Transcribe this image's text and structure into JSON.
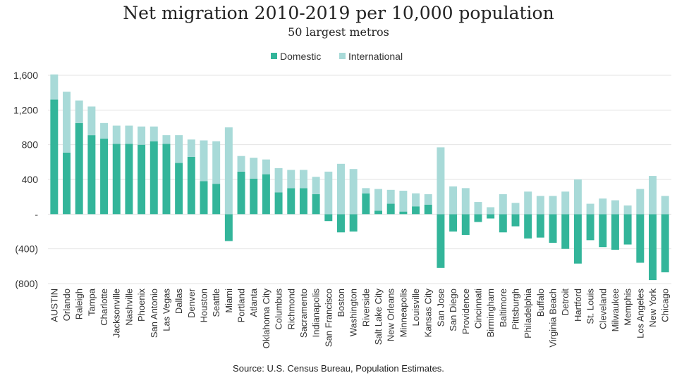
{
  "chart_data": {
    "type": "bar",
    "stacked": true,
    "title": "Net migration 2010-2019 per 10,000 population",
    "subtitle": "50 largest metros",
    "source": "Source:  U.S. Census Bureau, Population Estimates.",
    "ylim": [
      -800,
      1600
    ],
    "yticks": [
      {
        "value": 1600,
        "label": "1,600"
      },
      {
        "value": 1200,
        "label": "1,200"
      },
      {
        "value": 800,
        "label": "800"
      },
      {
        "value": 400,
        "label": "400"
      },
      {
        "value": 0,
        "label": "-"
      },
      {
        "value": -400,
        "label": "(400)"
      },
      {
        "value": -800,
        "label": "(800)"
      }
    ],
    "grid": true,
    "legend_position": "top",
    "categories": [
      "AUSTIN",
      "Orlando",
      "Raleigh",
      "Tampa",
      "Charlotte",
      "Jacksonville",
      "Nashville",
      "Phoenix",
      "San Antonio",
      "Las Vegas",
      "Dallas",
      "Denver",
      "Houston",
      "Seattle",
      "Miami",
      "Portland",
      "Atlanta",
      "Oklahoma City",
      "Columbus",
      "Richmond",
      "Sacramento",
      "Indianapolis",
      "San Francisco",
      "Boston",
      "Washington",
      "Riverside",
      "Salt Lake City",
      "New Orleans",
      "Minneapolis",
      "Louisville",
      "Kansas City",
      "San Jose",
      "San Diego",
      "Providence",
      "Cincinnati",
      "Birmingham",
      "Baltimore",
      "Pittsburgh",
      "Philadelphia",
      "Buffalo",
      "Virginia Beach",
      "Detroit",
      "Hartford",
      "St. Louis",
      "Cleveland",
      "Milwaukee",
      "Memphis",
      "Los Angeles",
      "New York",
      "Chicago"
    ],
    "series": [
      {
        "name": "Domestic",
        "color": "#33b59a",
        "values": [
          1320,
          710,
          1050,
          910,
          870,
          810,
          810,
          800,
          840,
          810,
          590,
          660,
          380,
          350,
          -310,
          490,
          410,
          460,
          250,
          300,
          300,
          230,
          -80,
          -210,
          -200,
          240,
          40,
          120,
          30,
          90,
          110,
          -620,
          -200,
          -240,
          -90,
          -50,
          -210,
          -140,
          -280,
          -270,
          -330,
          -400,
          -570,
          -300,
          -380,
          -410,
          -350,
          -560,
          -760,
          -670
        ]
      },
      {
        "name": "International",
        "color": "#a8dad8",
        "values": [
          290,
          700,
          260,
          330,
          180,
          210,
          210,
          210,
          170,
          100,
          320,
          200,
          470,
          490,
          1000,
          180,
          240,
          170,
          280,
          210,
          210,
          200,
          490,
          580,
          520,
          60,
          250,
          160,
          240,
          150,
          120,
          770,
          320,
          300,
          140,
          80,
          230,
          130,
          260,
          210,
          210,
          260,
          400,
          120,
          180,
          160,
          100,
          290,
          440,
          210
        ]
      }
    ]
  }
}
